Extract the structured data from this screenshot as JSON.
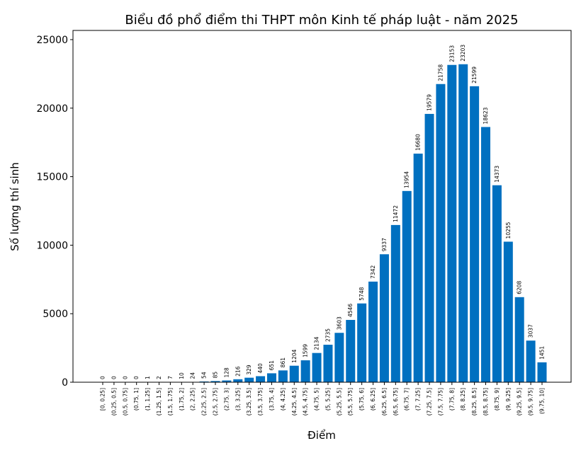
{
  "chart_data": {
    "type": "bar",
    "title": "Biểu đồ phổ điểm thi THPT môn Kinh tế pháp luật - năm 2025",
    "xlabel": "Điểm",
    "ylabel": "Số lượng thí sinh",
    "ylim": [
      0,
      25670
    ],
    "yticks": [
      0,
      5000,
      10000,
      15000,
      20000,
      25000
    ],
    "grid": false,
    "bar_color": "#0070c0",
    "categories": [
      "[0, 0.25]",
      "(0.25, 0.5]",
      "(0.5, 0.75]",
      "(0.75, 1]",
      "(1, 1.25]",
      "(1.25, 1.5]",
      "(1.5, 1.75]",
      "(1.75, 2]",
      "(2, 2.25]",
      "(2.25, 2.5]",
      "(2.5, 2.75]",
      "(2.75, 3]",
      "(3, 3.25]",
      "(3.25, 3.5]",
      "(3.5, 3.75]",
      "(3.75, 4]",
      "(4, 4.25]",
      "(4.25, 4.5]",
      "(4.5, 4.75]",
      "(4.75, 5]",
      "(5, 5.25]",
      "(5.25, 5.5]",
      "(5.5, 5.75]",
      "(5.75, 6]",
      "(6, 6.25]",
      "(6.25, 6.5]",
      "(6.5, 6.75]",
      "(6.75, 7]",
      "(7, 7.25]",
      "(7.25, 7.5]",
      "(7.5, 7.75]",
      "(7.75, 8]",
      "(8, 8.25]",
      "(8.25, 8.5]",
      "(8.5, 8.75]",
      "(8.75, 9]",
      "(9, 9.25]",
      "(9.25, 9.5]",
      "(9.5, 9.75]",
      "(9.75, 10]"
    ],
    "values": [
      0,
      0,
      0,
      0,
      1,
      2,
      7,
      10,
      24,
      54,
      85,
      128,
      216,
      329,
      440,
      651,
      861,
      1204,
      1599,
      2134,
      2735,
      3603,
      4546,
      5748,
      7342,
      9337,
      11472,
      13954,
      16680,
      19579,
      21758,
      23153,
      23203,
      21599,
      18623,
      14373,
      10255,
      6208,
      3037,
      1451
    ]
  }
}
